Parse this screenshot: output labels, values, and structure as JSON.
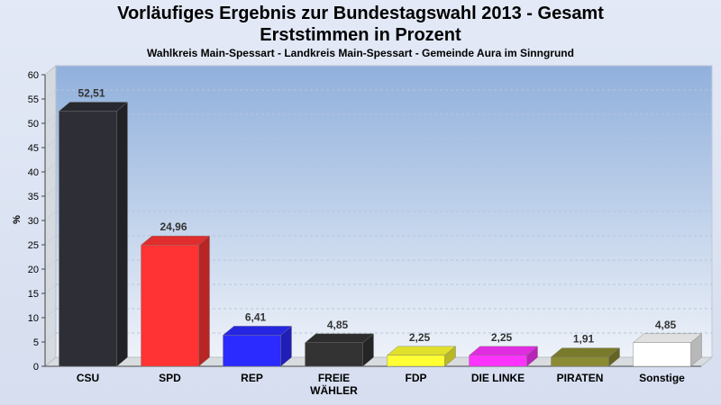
{
  "title_line1": "Vorläufiges Ergebnis zur Bundestagswahl 2013 - Gesamt",
  "title_line2": "Erststimmen in Prozent",
  "subtitle": "Wahlkreis Main-Spessart - Landkreis Main-Spessart - Gemeinde Aura im Sinngrund",
  "chart_data": {
    "type": "bar",
    "title": "Vorläufiges Ergebnis zur Bundestagswahl 2013 - Gesamt / Erststimmen in Prozent",
    "subtitle": "Wahlkreis Main-Spessart - Landkreis Main-Spessart - Gemeinde Aura im Sinngrund",
    "xlabel": "",
    "ylabel": "%",
    "ylim": [
      0,
      60
    ],
    "yticks": [
      0,
      5,
      10,
      15,
      20,
      25,
      30,
      35,
      40,
      45,
      50,
      55,
      60
    ],
    "grid": true,
    "categories": [
      "CSU",
      "SPD",
      "REP",
      "FREIE WÄHLER",
      "FDP",
      "DIE LINKE",
      "PIRATEN",
      "Sonstige"
    ],
    "category_lines": [
      [
        "CSU"
      ],
      [
        "SPD"
      ],
      [
        "REP"
      ],
      [
        "FREIE",
        "WÄHLER"
      ],
      [
        "FDP"
      ],
      [
        "DIE LINKE"
      ],
      [
        "PIRATEN"
      ],
      [
        "Sonstige"
      ]
    ],
    "values": [
      52.51,
      24.96,
      6.41,
      4.85,
      2.25,
      2.25,
      1.91,
      4.85
    ],
    "value_labels": [
      "52,51",
      "24,96",
      "6,41",
      "4,85",
      "2,25",
      "2,25",
      "1,91",
      "4,85"
    ],
    "colors": [
      "#2e2f36",
      "#ff3333",
      "#2b2bff",
      "#333333",
      "#ffff33",
      "#ff33ff",
      "#8b8b33",
      "#ffffff"
    ]
  }
}
